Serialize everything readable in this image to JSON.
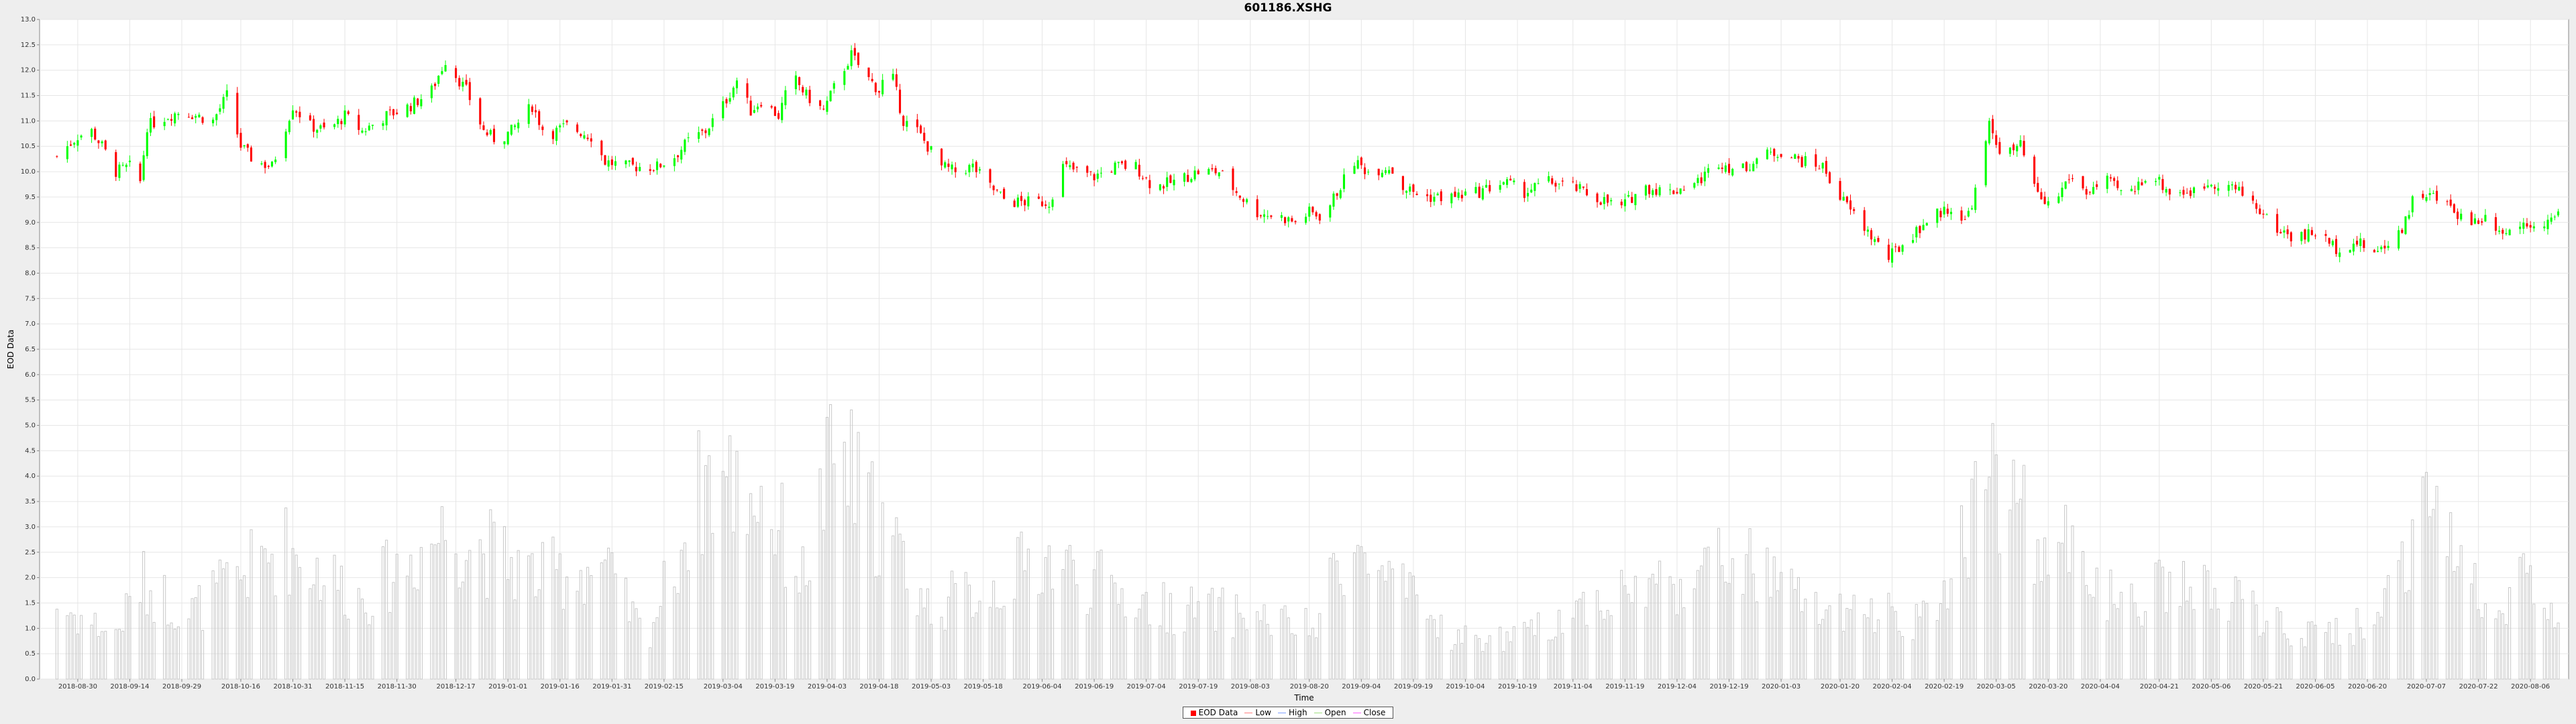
{
  "chart_data": {
    "type": "candlestick",
    "title": "601186.XSHG",
    "xlabel": "Time",
    "ylabel": "EOD Data",
    "ylim": [
      0.0,
      13.0
    ],
    "y_tick_step": 0.5,
    "grid": true,
    "legend_position": "bottom-center",
    "colors": {
      "up": "#00ff00",
      "down": "#ff0000",
      "volume": "#c8c8c8",
      "plot_bg": "#ffffff",
      "grid": "#e6e6e6"
    },
    "x_ticks": [
      "2018-08-30",
      "2018-09-14",
      "2018-09-29",
      "2018-10-16",
      "2018-10-31",
      "2018-11-15",
      "2018-11-30",
      "2018-12-17",
      "2019-01-01",
      "2019-01-16",
      "2019-01-31",
      "2019-02-15",
      "2019-03-04",
      "2019-03-19",
      "2019-04-03",
      "2019-04-18",
      "2019-05-03",
      "2019-05-18",
      "2019-06-04",
      "2019-06-19",
      "2019-07-04",
      "2019-07-19",
      "2019-08-03",
      "2019-08-20",
      "2019-09-04",
      "2019-09-19",
      "2019-10-04",
      "2019-10-19",
      "2019-11-04",
      "2019-11-19",
      "2019-12-04",
      "2019-12-19",
      "2020-01-03",
      "2020-01-20",
      "2020-02-04",
      "2020-02-19",
      "2020-03-05",
      "2020-03-20",
      "2020-04-04",
      "2020-04-21",
      "2020-05-06",
      "2020-05-21",
      "2020-06-05",
      "2020-06-20",
      "2020-07-07",
      "2020-07-22",
      "2020-08-06"
    ],
    "close_anchors": [
      [
        "2018-08-24",
        10.3
      ],
      [
        "2018-08-30",
        10.7
      ],
      [
        "2018-09-03",
        10.8
      ],
      [
        "2018-09-06",
        10.5
      ],
      [
        "2018-09-10",
        10.0
      ],
      [
        "2018-09-14",
        10.1
      ],
      [
        "2018-09-17",
        9.8
      ],
      [
        "2018-09-19",
        10.9
      ],
      [
        "2018-09-25",
        11.1
      ],
      [
        "2018-09-29",
        11.2
      ],
      [
        "2018-10-08",
        11.0
      ],
      [
        "2018-10-12",
        11.5
      ],
      [
        "2018-10-16",
        10.5
      ],
      [
        "2018-10-20",
        10.2
      ],
      [
        "2018-10-25",
        10.1
      ],
      [
        "2018-10-31",
        11.3
      ],
      [
        "2018-11-05",
        10.9
      ],
      [
        "2018-11-10",
        10.8
      ],
      [
        "2018-11-15",
        11.1
      ],
      [
        "2018-11-20",
        10.8
      ],
      [
        "2018-11-27",
        11.1
      ],
      [
        "2018-12-04",
        11.3
      ],
      [
        "2018-12-10",
        11.6
      ],
      [
        "2018-12-14",
        12.2
      ],
      [
        "2018-12-20",
        11.6
      ],
      [
        "2018-12-25",
        10.8
      ],
      [
        "2018-12-29",
        10.6
      ],
      [
        "2019-01-02",
        10.8
      ],
      [
        "2019-01-08",
        11.3
      ],
      [
        "2019-01-12",
        10.7
      ],
      [
        "2019-01-18",
        10.9
      ],
      [
        "2019-01-25",
        10.7
      ],
      [
        "2019-01-29",
        10.2
      ],
      [
        "2019-02-04",
        10.1
      ],
      [
        "2019-02-13",
        10.1
      ],
      [
        "2019-02-18",
        10.3
      ],
      [
        "2019-02-22",
        10.6
      ],
      [
        "2019-02-27",
        10.8
      ],
      [
        "2019-03-04",
        11.3
      ],
      [
        "2019-03-08",
        11.8
      ],
      [
        "2019-03-12",
        11.2
      ],
      [
        "2019-03-15",
        11.4
      ],
      [
        "2019-03-20",
        11.1
      ],
      [
        "2019-03-24",
        11.9
      ],
      [
        "2019-03-28",
        11.5
      ],
      [
        "2019-04-02",
        11.2
      ],
      [
        "2019-04-06",
        11.8
      ],
      [
        "2019-04-10",
        12.3
      ],
      [
        "2019-04-14",
        11.9
      ],
      [
        "2019-04-18",
        11.6
      ],
      [
        "2019-04-21",
        12.1
      ],
      [
        "2019-04-25",
        11.0
      ],
      [
        "2019-04-29",
        10.8
      ],
      [
        "2019-05-06",
        10.1
      ],
      [
        "2019-05-10",
        10.0
      ],
      [
        "2019-05-15",
        10.1
      ],
      [
        "2019-05-20",
        9.7
      ],
      [
        "2019-05-25",
        9.4
      ],
      [
        "2019-06-01",
        9.4
      ],
      [
        "2019-06-06",
        9.4
      ],
      [
        "2019-06-10",
        10.1
      ],
      [
        "2019-06-19",
        9.9
      ],
      [
        "2019-06-25",
        10.1
      ],
      [
        "2019-07-01",
        10.1
      ],
      [
        "2019-07-06",
        9.7
      ],
      [
        "2019-07-12",
        9.8
      ],
      [
        "2019-07-19",
        10.0
      ],
      [
        "2019-07-25",
        10.0
      ],
      [
        "2019-07-30",
        9.6
      ],
      [
        "2019-08-05",
        9.2
      ],
      [
        "2019-08-12",
        9.1
      ],
      [
        "2019-08-16",
        9.0
      ],
      [
        "2019-08-20",
        9.2
      ],
      [
        "2019-08-24",
        9.1
      ],
      [
        "2019-08-28",
        9.6
      ],
      [
        "2019-09-02",
        10.2
      ],
      [
        "2019-09-06",
        10.0
      ],
      [
        "2019-09-12",
        10.1
      ],
      [
        "2019-09-16",
        9.7
      ],
      [
        "2019-09-22",
        9.5
      ],
      [
        "2019-09-30",
        9.5
      ],
      [
        "2019-10-08",
        9.6
      ],
      [
        "2019-10-15",
        9.8
      ],
      [
        "2019-10-21",
        9.6
      ],
      [
        "2019-10-28",
        9.8
      ],
      [
        "2019-11-04",
        9.7
      ],
      [
        "2019-11-10",
        9.5
      ],
      [
        "2019-11-18",
        9.3
      ],
      [
        "2019-11-24",
        9.7
      ],
      [
        "2019-12-02",
        9.6
      ],
      [
        "2019-12-10",
        9.8
      ],
      [
        "2019-12-16",
        10.2
      ],
      [
        "2019-12-22",
        10.0
      ],
      [
        "2019-12-28",
        10.3
      ],
      [
        "2020-01-03",
        10.4
      ],
      [
        "2020-01-09",
        10.2
      ],
      [
        "2020-01-15",
        10.1
      ],
      [
        "2020-01-20",
        9.5
      ],
      [
        "2020-02-03",
        8.3
      ],
      [
        "2020-02-09",
        8.7
      ],
      [
        "2020-02-15",
        9.1
      ],
      [
        "2020-02-21",
        9.3
      ],
      [
        "2020-02-25",
        9.0
      ],
      [
        "2020-02-28",
        9.6
      ],
      [
        "2020-03-03",
        10.9
      ],
      [
        "2020-03-07",
        10.3
      ],
      [
        "2020-03-12",
        10.5
      ],
      [
        "2020-03-17",
        9.5
      ],
      [
        "2020-03-21",
        9.3
      ],
      [
        "2020-03-26",
        9.9
      ],
      [
        "2020-03-31",
        9.6
      ],
      [
        "2020-04-06",
        9.8
      ],
      [
        "2020-04-12",
        9.5
      ],
      [
        "2020-04-18",
        10.0
      ],
      [
        "2020-04-24",
        9.6
      ],
      [
        "2020-05-01",
        9.6
      ],
      [
        "2020-05-06",
        9.8
      ],
      [
        "2020-05-12",
        9.7
      ],
      [
        "2020-05-18",
        9.4
      ],
      [
        "2020-05-24",
        8.9
      ],
      [
        "2020-05-30",
        8.7
      ],
      [
        "2020-06-05",
        8.8
      ],
      [
        "2020-06-11",
        8.5
      ],
      [
        "2020-06-17",
        8.6
      ],
      [
        "2020-06-23",
        8.4
      ],
      [
        "2020-06-30",
        8.9
      ],
      [
        "2020-07-04",
        9.6
      ],
      [
        "2020-07-09",
        9.5
      ],
      [
        "2020-07-14",
        9.3
      ],
      [
        "2020-07-19",
        9.0
      ],
      [
        "2020-07-24",
        9.1
      ],
      [
        "2020-07-30",
        8.8
      ],
      [
        "2020-08-04",
        9.0
      ],
      [
        "2020-08-10",
        9.0
      ],
      [
        "2020-08-14",
        9.1
      ]
    ],
    "volume_peaks": [
      [
        "2018-08-24",
        1.8
      ],
      [
        "2018-09-10",
        1.1
      ],
      [
        "2018-09-17",
        2.4
      ],
      [
        "2018-10-01",
        1.6
      ],
      [
        "2018-10-12",
        2.3
      ],
      [
        "2018-10-28",
        3.3
      ],
      [
        "2018-11-20",
        2.0
      ],
      [
        "2018-12-14",
        3.7
      ],
      [
        "2019-01-10",
        2.5
      ],
      [
        "2019-01-28",
        2.8
      ],
      [
        "2019-02-10",
        1.0
      ],
      [
        "2019-02-27",
        5.0
      ],
      [
        "2019-03-15",
        4.6
      ],
      [
        "2019-03-27",
        2.5
      ],
      [
        "2019-04-06",
        5.8
      ],
      [
        "2019-04-12",
        4.6
      ],
      [
        "2019-04-20",
        3.6
      ],
      [
        "2019-05-02",
        1.8
      ],
      [
        "2019-05-20",
        2.2
      ],
      [
        "2019-06-04",
        3.0
      ],
      [
        "2019-07-05",
        1.8
      ],
      [
        "2019-08-01",
        1.6
      ],
      [
        "2019-08-23",
        1.2
      ],
      [
        "2019-08-28",
        3.3
      ],
      [
        "2019-09-05",
        2.9
      ],
      [
        "2019-10-01",
        1.0
      ],
      [
        "2019-10-20",
        1.0
      ],
      [
        "2019-11-08",
        1.9
      ],
      [
        "2019-12-07",
        2.5
      ],
      [
        "2019-12-21",
        3.0
      ],
      [
        "2020-01-08",
        2.0
      ],
      [
        "2020-01-21",
        1.5
      ],
      [
        "2020-02-03",
        1.7
      ],
      [
        "2020-02-15",
        1.4
      ],
      [
        "2020-02-27",
        4.2
      ],
      [
        "2020-03-03",
        5.2
      ],
      [
        "2020-03-10",
        4.4
      ],
      [
        "2020-03-19",
        3.0
      ],
      [
        "2020-03-28",
        3.4
      ],
      [
        "2020-04-10",
        1.6
      ],
      [
        "2020-04-25",
        2.4
      ],
      [
        "2020-05-16",
        1.8
      ],
      [
        "2020-06-01",
        1.0
      ],
      [
        "2020-06-22",
        1.4
      ],
      [
        "2020-07-01",
        3.2
      ],
      [
        "2020-07-06",
        4.5
      ],
      [
        "2020-07-15",
        3.0
      ],
      [
        "2020-07-28",
        1.8
      ],
      [
        "2020-08-04",
        2.7
      ],
      [
        "2020-08-14",
        1.2
      ]
    ],
    "series": [
      "EOD Data",
      "Low",
      "High",
      "Open",
      "Close"
    ]
  },
  "legend": {
    "items": [
      {
        "label": "EOD Data",
        "color": "#ff0000",
        "kind": "box"
      },
      {
        "label": "Low",
        "color": "#ff8080",
        "kind": "line"
      },
      {
        "label": "High",
        "color": "#80a0ff",
        "kind": "line"
      },
      {
        "label": "Open",
        "color": "#a0e080",
        "kind": "line"
      },
      {
        "label": "Close",
        "color": "#ff60ff",
        "kind": "line"
      }
    ]
  }
}
